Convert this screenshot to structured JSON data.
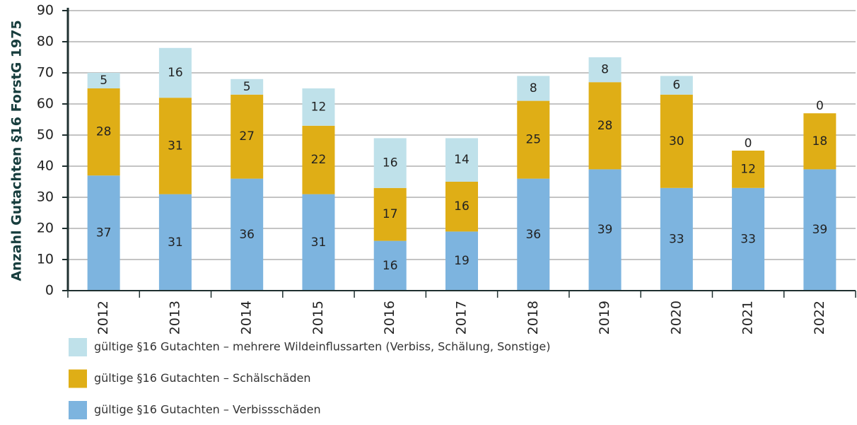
{
  "chart_data": {
    "type": "stacked_bar",
    "y_label": "Anzahl Gutachten §16 ForstG 1975",
    "categories": [
      "2012",
      "2013",
      "2014",
      "2015",
      "2016",
      "2017",
      "2018",
      "2019",
      "2020",
      "2021",
      "2022"
    ],
    "series": [
      {
        "name": "gültige §16 Gutachten – Verbissschäden",
        "color": "#7db4df",
        "values": [
          37,
          31,
          36,
          31,
          16,
          19,
          36,
          39,
          33,
          33,
          39
        ]
      },
      {
        "name": "gültige §16 Gutachten – Schälschäden",
        "color": "#dfae16",
        "values": [
          28,
          31,
          27,
          22,
          17,
          16,
          25,
          28,
          30,
          12,
          18
        ]
      },
      {
        "name": "gültige §16 Gutachten – mehrere Wildeinflussarten (Verbiss, Schälung, Sonstige)",
        "color": "#bfe1ea",
        "values": [
          5,
          16,
          5,
          12,
          16,
          14,
          8,
          8,
          6,
          0,
          0
        ]
      }
    ],
    "ylim": [
      0,
      90
    ],
    "yticks": [
      0,
      10,
      20,
      30,
      40,
      50,
      60,
      70,
      80,
      90
    ],
    "grid": true
  }
}
